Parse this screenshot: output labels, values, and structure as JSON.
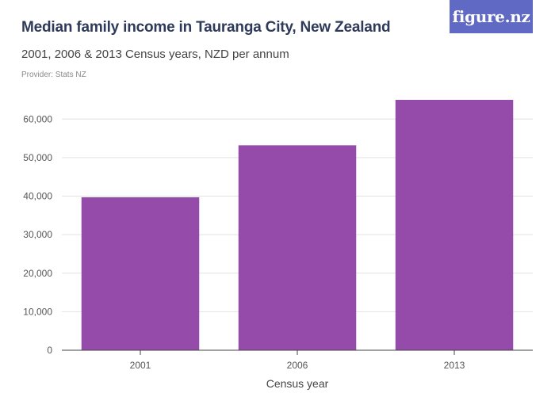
{
  "header": {
    "title": "Median family income in Tauranga City, New Zealand",
    "subtitle": "2001, 2006 & 2013 Census years, NZD per annum",
    "provider": "Provider: Stats NZ"
  },
  "logo": {
    "text": "figure.nz",
    "color": "#6069c3"
  },
  "chart_data": {
    "type": "bar",
    "categories": [
      "2001",
      "2006",
      "2013"
    ],
    "values": [
      39700,
      53200,
      65000
    ],
    "xlabel": "Census year",
    "ylabel": "",
    "ylim": [
      0,
      65000
    ],
    "yticks": [
      0,
      10000,
      20000,
      30000,
      40000,
      50000,
      60000
    ],
    "ytick_labels": [
      "0",
      "10,000",
      "20,000",
      "30,000",
      "40,000",
      "50,000",
      "60,000"
    ],
    "grid": true,
    "legend": "none",
    "bar_color": "#954baa",
    "grid_color": "#e2e2e2",
    "axis_color": "#444444"
  }
}
